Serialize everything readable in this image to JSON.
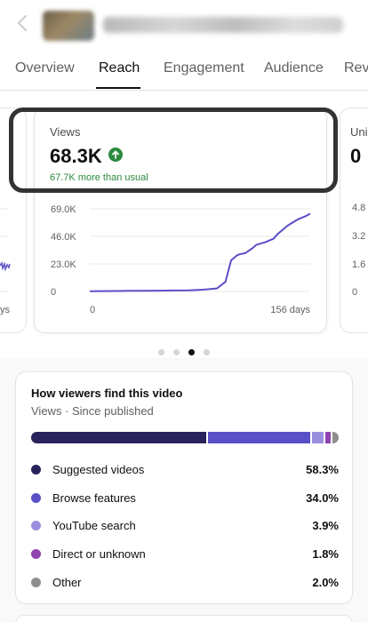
{
  "tabs": [
    {
      "label": "Overview"
    },
    {
      "label": "Reach",
      "active": true
    },
    {
      "label": "Engagement"
    },
    {
      "label": "Audience"
    },
    {
      "label": "Rev"
    }
  ],
  "views_card": {
    "label": "Views",
    "value": "68.3K",
    "change": "67.7K more than usual",
    "trend_icon": "arrow-up-circle-icon",
    "trend_color": "#2b8a3e"
  },
  "next_card": {
    "label": "Uni",
    "value": "0",
    "y_ticks": [
      "4.8",
      "3.2",
      "1.6",
      "0"
    ]
  },
  "prev_card": {
    "x_label": "ys"
  },
  "carousel": {
    "page_count": 4,
    "active_index": 2
  },
  "chart_data": {
    "type": "line",
    "yticks": [
      "69.0K",
      "46.0K",
      "23.0K",
      "0"
    ],
    "ylim": [
      0,
      69000
    ],
    "xticks": [
      "0",
      "156 days"
    ],
    "xlim": [
      0,
      156
    ],
    "line_color": "#5b4fc7",
    "series": [
      {
        "x": [
          0,
          10,
          20,
          30,
          40,
          50,
          60,
          70,
          80,
          90,
          96,
          100,
          104,
          106,
          110,
          115,
          118,
          124,
          130,
          133,
          140,
          147,
          153,
          156
        ],
        "y": [
          200,
          300,
          400,
          500,
          600,
          700,
          800,
          1000,
          1500,
          2500,
          8000,
          26000,
          30000,
          31000,
          32000,
          36000,
          39000,
          41000,
          44000,
          48000,
          55000,
          60000,
          63000,
          65000
        ]
      }
    ]
  },
  "traffic": {
    "title": "How viewers find this video",
    "subtitle": "Views · Since published",
    "sources": [
      {
        "name": "Suggested videos",
        "pct": "58.3%",
        "value": 58.3,
        "color": "#28235a"
      },
      {
        "name": "Browse features",
        "pct": "34.0%",
        "value": 34.0,
        "color": "#5b4fc7"
      },
      {
        "name": "YouTube search",
        "pct": "3.9%",
        "value": 3.9,
        "color": "#9a8fdf"
      },
      {
        "name": "Direct or unknown",
        "pct": "1.8%",
        "value": 1.8,
        "color": "#8e44ad"
      },
      {
        "name": "Other",
        "pct": "2.0%",
        "value": 2.0,
        "color": "#8f8f8f"
      }
    ]
  }
}
